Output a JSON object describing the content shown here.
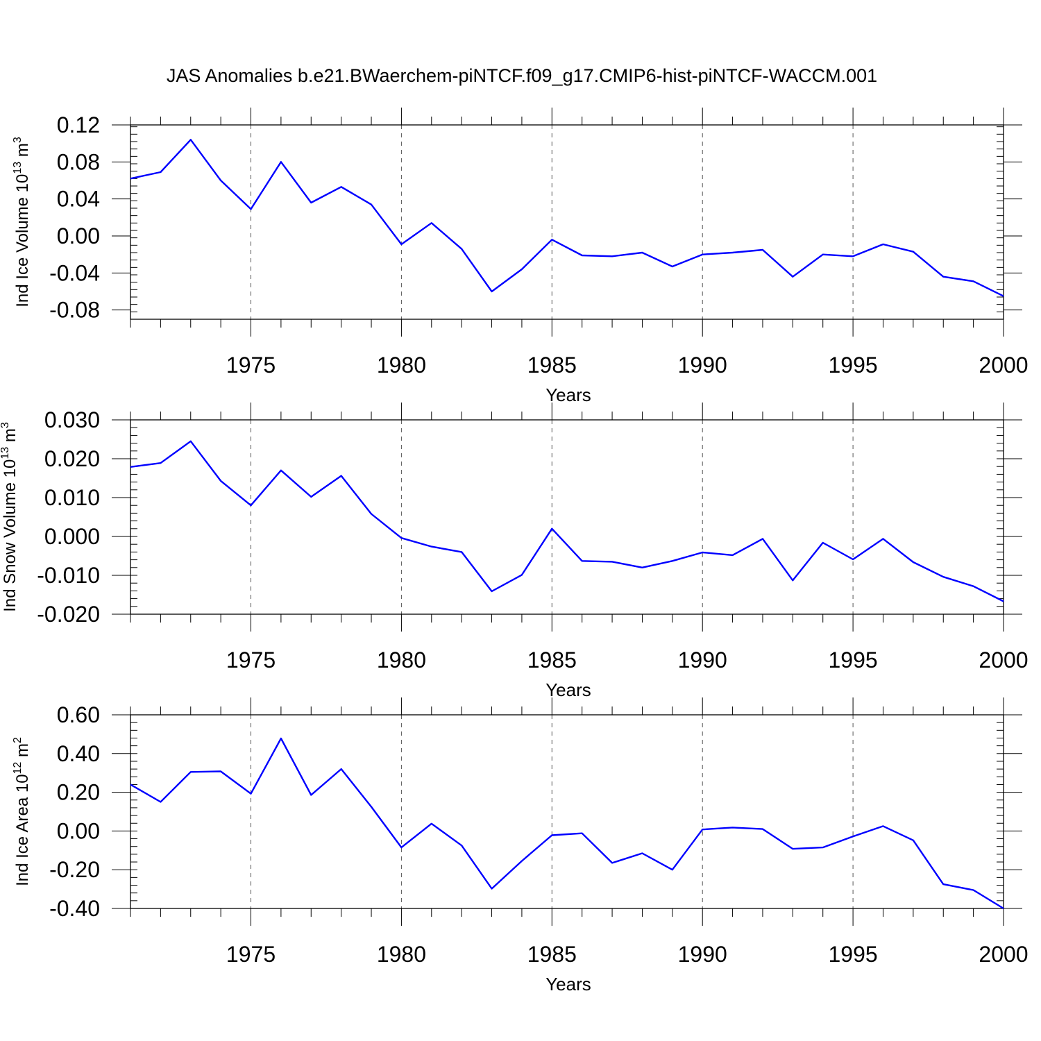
{
  "chart_data": {
    "title": "JAS Anomalies b.e21.BWaerchem-piNTCF.f09_g17.CMIP6-hist-piNTCF-WACCM.001",
    "line_color": "#0000ff",
    "panels": [
      {
        "type": "line",
        "ylabel_main": "Ind Ice Volume 10",
        "ylabel_sup": "13",
        "ylabel_unit": " m",
        "ylabel_unit_sup": "3",
        "xlabel": "Years",
        "xlim": [
          1971,
          2000
        ],
        "ylim": [
          -0.09,
          0.12
        ],
        "yticks": [
          -0.08,
          -0.04,
          0.0,
          0.04,
          0.08,
          0.12
        ],
        "ytick_labels": [
          "-0.08",
          "-0.04",
          "0.00",
          "0.04",
          "0.08",
          "0.12"
        ],
        "xticks": [
          1975,
          1980,
          1985,
          1990,
          1995,
          2000
        ],
        "xtick_labels": [
          "1975",
          "1980",
          "1985",
          "1990",
          "1995",
          "2000"
        ],
        "x": [
          1971,
          1972,
          1973,
          1974,
          1975,
          1976,
          1977,
          1978,
          1979,
          1980,
          1981,
          1982,
          1983,
          1984,
          1985,
          1986,
          1987,
          1988,
          1989,
          1990,
          1991,
          1992,
          1993,
          1994,
          1995,
          1996,
          1997,
          1998,
          1999,
          2000
        ],
        "y": [
          0.062,
          0.069,
          0.104,
          0.06,
          0.029,
          0.08,
          0.036,
          0.053,
          0.034,
          -0.009,
          0.014,
          -0.014,
          -0.06,
          -0.036,
          -0.004,
          -0.021,
          -0.022,
          -0.018,
          -0.033,
          -0.02,
          -0.018,
          -0.015,
          -0.044,
          -0.02,
          -0.022,
          -0.009,
          -0.017,
          -0.044,
          -0.049,
          -0.065
        ]
      },
      {
        "type": "line",
        "ylabel_main": "Ind Snow Volume 10",
        "ylabel_sup": "13",
        "ylabel_unit": " m",
        "ylabel_unit_sup": "3",
        "xlabel": "Years",
        "xlim": [
          1971,
          2000
        ],
        "ylim": [
          -0.02,
          0.03
        ],
        "yticks": [
          -0.02,
          -0.01,
          0.0,
          0.01,
          0.02,
          0.03
        ],
        "ytick_labels": [
          "-0.020",
          "-0.010",
          "0.000",
          "0.010",
          "0.020",
          "0.030"
        ],
        "xticks": [
          1975,
          1980,
          1985,
          1990,
          1995,
          2000
        ],
        "xtick_labels": [
          "1975",
          "1980",
          "1985",
          "1990",
          "1995",
          "2000"
        ],
        "x": [
          1971,
          1972,
          1973,
          1974,
          1975,
          1976,
          1977,
          1978,
          1979,
          1980,
          1981,
          1982,
          1983,
          1984,
          1985,
          1986,
          1987,
          1988,
          1989,
          1990,
          1991,
          1992,
          1993,
          1994,
          1995,
          1996,
          1997,
          1998,
          1999,
          2000
        ],
        "y": [
          0.0179,
          0.0189,
          0.0245,
          0.0143,
          0.008,
          0.017,
          0.0102,
          0.0156,
          0.0058,
          -0.0004,
          -0.0026,
          -0.004,
          -0.0141,
          -0.0099,
          0.002,
          -0.0063,
          -0.0065,
          -0.008,
          -0.0063,
          -0.0041,
          -0.0048,
          -0.0006,
          -0.0113,
          -0.0016,
          -0.0059,
          -0.0006,
          -0.0066,
          -0.0104,
          -0.0128,
          -0.0167
        ]
      },
      {
        "type": "line",
        "ylabel_main": "Ind Ice Area 10",
        "ylabel_sup": "12",
        "ylabel_unit": " m",
        "ylabel_unit_sup": "2",
        "xlabel": "Years",
        "xlim": [
          1971,
          2000
        ],
        "ylim": [
          -0.4,
          0.6
        ],
        "yticks": [
          -0.4,
          -0.2,
          0.0,
          0.2,
          0.4,
          0.6
        ],
        "ytick_labels": [
          "-0.40",
          "-0.20",
          "0.00",
          "0.20",
          "0.40",
          "0.60"
        ],
        "xticks": [
          1975,
          1980,
          1985,
          1990,
          1995,
          2000
        ],
        "xtick_labels": [
          "1975",
          "1980",
          "1985",
          "1990",
          "1995",
          "2000"
        ],
        "x": [
          1971,
          1972,
          1973,
          1974,
          1975,
          1976,
          1977,
          1978,
          1979,
          1980,
          1981,
          1982,
          1983,
          1984,
          1985,
          1986,
          1987,
          1988,
          1989,
          1990,
          1991,
          1992,
          1993,
          1994,
          1995,
          1996,
          1997,
          1998,
          1999,
          2000
        ],
        "y": [
          0.24,
          0.15,
          0.305,
          0.308,
          0.193,
          0.478,
          0.186,
          0.32,
          0.125,
          -0.085,
          0.038,
          -0.075,
          -0.298,
          -0.155,
          -0.022,
          -0.012,
          -0.165,
          -0.115,
          -0.2,
          0.008,
          0.018,
          0.01,
          -0.092,
          -0.085,
          -0.028,
          0.025,
          -0.048,
          -0.275,
          -0.305,
          -0.4
        ]
      }
    ]
  }
}
